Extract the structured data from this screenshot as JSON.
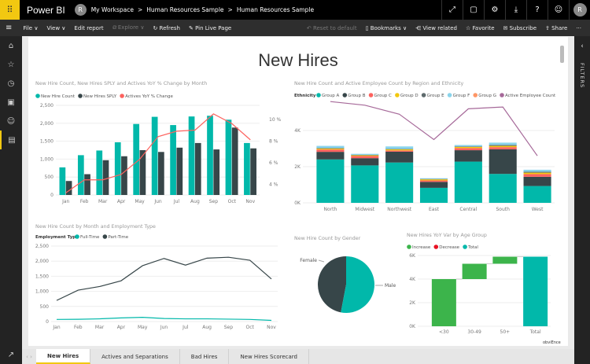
{
  "app": {
    "name": "Power BI",
    "workspace": "My Workspace",
    "breadcrumb": [
      "Human Resources Sample",
      "Human Resources Sample"
    ],
    "avatar_initial": "R",
    "sep": ">"
  },
  "topicons": [
    "expand-icon",
    "comment-icon",
    "gear-icon",
    "download-icon",
    "help-icon",
    "smiley-icon"
  ],
  "toolbar": {
    "file": "File ∨",
    "view": "View ∨",
    "edit": "Edit report",
    "explore": "Explore ∨",
    "refresh": "Refresh",
    "pin": "Pin Live Page",
    "reset": "Reset to default",
    "bookmarks": "Bookmarks ∨",
    "view_related": "View related",
    "favorite": "Favorite",
    "subscribe": "Subscribe",
    "share": "Share",
    "more": "···"
  },
  "filters_label": "FILTERS",
  "page_title": "New Hires",
  "tabs": [
    "New Hires",
    "Actives and Separations",
    "Bad Hires",
    "New Hires Scorecard"
  ],
  "colors": {
    "teal": "#01b8aa",
    "dark": "#374649",
    "red": "#fd625e",
    "yellow": "#f2c80f",
    "gray": "#5f6b6d",
    "lightblue": "#8ad4eb",
    "orange": "#fe9666",
    "purple": "#a66999",
    "green": "#3cb44b",
    "decrease": "#e81123"
  },
  "watermark": "obviEnce",
  "chart_data": [
    {
      "type": "bar",
      "title": "New Hire Count, New Hires SPLY and Actives YoY % Change by Month",
      "categories": [
        "Jan",
        "Feb",
        "Mar",
        "Apr",
        "May",
        "Jun",
        "Jul",
        "Aug",
        "Sep",
        "Oct",
        "Nov"
      ],
      "series": [
        {
          "name": "New Hire Count",
          "values": [
            770,
            1110,
            1240,
            1470,
            1980,
            2180,
            1950,
            2190,
            2210,
            2100,
            1450
          ]
        },
        {
          "name": "New Hires SPLY",
          "values": [
            390,
            580,
            970,
            1080,
            1250,
            1200,
            1320,
            1450,
            1270,
            1880,
            1300
          ]
        },
        {
          "name": "Actives YoY % Change",
          "type": "line",
          "axis": "right",
          "values": [
            3.2,
            4.4,
            4.4,
            4.9,
            6.3,
            8.4,
            8.9,
            9.0,
            10.5,
            9.6,
            8.1
          ]
        }
      ],
      "ylim": [
        0,
        2500
      ],
      "yticks": [
        "0",
        "500",
        "1,000",
        "1,500",
        "2,000",
        "2,500"
      ],
      "y2lim": [
        3,
        11
      ],
      "y2ticks": [
        "4 %",
        "6 %",
        "8 %",
        "10 %"
      ],
      "grid": true,
      "legend": "top-left"
    },
    {
      "type": "bar",
      "stacked": true,
      "title": "New Hire Count and Active Employee Count by Region and Ethnicity",
      "legend_title": "Ethnicity",
      "categories": [
        "North",
        "Midwest",
        "Northwest",
        "East",
        "Central",
        "South",
        "West"
      ],
      "series": [
        {
          "name": "Group A",
          "values": [
            2400,
            2070,
            2230,
            830,
            2280,
            1600,
            930
          ]
        },
        {
          "name": "Group B",
          "values": [
            420,
            400,
            600,
            330,
            630,
            1360,
            510
          ]
        },
        {
          "name": "Group C",
          "values": [
            130,
            120,
            70,
            80,
            120,
            120,
            150
          ]
        },
        {
          "name": "Group D",
          "values": [
            50,
            40,
            60,
            60,
            60,
            70,
            80
          ]
        },
        {
          "name": "Group E",
          "values": [
            30,
            20,
            20,
            20,
            30,
            50,
            50
          ]
        },
        {
          "name": "Group F",
          "values": [
            120,
            60,
            140,
            40,
            80,
            130,
            110
          ]
        },
        {
          "name": "Group G",
          "values": [
            0,
            0,
            0,
            0,
            0,
            0,
            0
          ]
        },
        {
          "name": "Active Employee Count",
          "type": "line",
          "values": [
            5600,
            5400,
            4900,
            3500,
            5200,
            5300,
            2600
          ]
        }
      ],
      "ylim": [
        0,
        6500
      ],
      "yticks": [
        "0K",
        "2K",
        "4K"
      ],
      "grid": true,
      "legend": "top-left"
    },
    {
      "type": "line",
      "title": "New Hire Count by Month and Employment Type",
      "legend_title": "Employment Type",
      "categories": [
        "Jan",
        "Feb",
        "Mar",
        "Apr",
        "May",
        "Jun",
        "Jul",
        "Aug",
        "Sep",
        "Oct",
        "Nov"
      ],
      "series": [
        {
          "name": "Full-Time",
          "values": [
            70,
            75,
            90,
            120,
            140,
            100,
            90,
            90,
            80,
            70,
            40
          ]
        },
        {
          "name": "Part-Time",
          "values": [
            700,
            1040,
            1160,
            1350,
            1850,
            2090,
            1870,
            2100,
            2130,
            2030,
            1410
          ]
        }
      ],
      "ylim": [
        0,
        2500
      ],
      "yticks": [
        "0",
        "500",
        "1,000",
        "1,500",
        "2,000",
        "2,500"
      ],
      "grid": true,
      "legend": "top-left"
    },
    {
      "type": "pie",
      "title": "New Hire Count by Gender",
      "categories": [
        "Female",
        "Male"
      ],
      "values": [
        47,
        53
      ]
    },
    {
      "type": "bar",
      "waterfall": true,
      "title": "New Hires YoY Var by Age Group",
      "legend": [
        "Increase",
        "Decrease",
        "Total"
      ],
      "categories": [
        "<30",
        "30-49",
        "50+",
        "Total"
      ],
      "values": [
        4000,
        1300,
        600,
        5900
      ],
      "ylim": [
        0,
        6000
      ],
      "yticks": [
        "0K",
        "2K",
        "4K",
        "6K"
      ],
      "grid": true
    }
  ]
}
